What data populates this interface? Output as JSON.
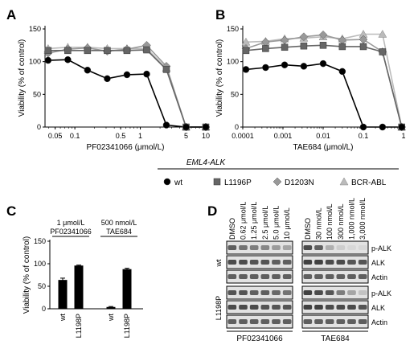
{
  "panels": {
    "A": "A",
    "B": "B",
    "C": "C",
    "D": "D"
  },
  "legend": {
    "title": "EML4-ALK",
    "items": [
      {
        "label": "wt",
        "marker": "circle",
        "color": "#000000"
      },
      {
        "label": "L1196P",
        "marker": "square",
        "color": "#666666"
      },
      {
        "label": "D1203N",
        "marker": "diamond",
        "color": "#999999"
      },
      {
        "label": "BCR-ABL",
        "marker": "triangle",
        "color": "#bbbbbb"
      }
    ]
  },
  "chart_data": [
    {
      "panel": "A",
      "type": "line",
      "xscale": "log",
      "xlim": [
        0.035,
        10
      ],
      "ylim": [
        0,
        150
      ],
      "xlabel": "PF02341066 (μmol/L)",
      "ylabel": "Viability (% of control)",
      "xticks": [
        0.05,
        0.1,
        0.5,
        1,
        5,
        10
      ],
      "xtick_labels": [
        "0.05",
        "0.1",
        "0.5",
        "1",
        "5",
        "10"
      ],
      "yticks": [
        0,
        50,
        100,
        150
      ],
      "x": [
        0.039,
        0.078,
        0.156,
        0.3125,
        0.625,
        1.25,
        2.5,
        5,
        10
      ],
      "series": [
        {
          "name": "wt",
          "color": "#000000",
          "marker": "circle",
          "values": [
            102,
            103,
            87,
            74,
            80,
            81,
            3,
            0,
            0
          ]
        },
        {
          "name": "L1196P",
          "color": "#666666",
          "marker": "square",
          "values": [
            117,
            117,
            117,
            117,
            117,
            118,
            88,
            0,
            0
          ]
        },
        {
          "name": "D1203N",
          "color": "#999999",
          "marker": "diamond",
          "values": [
            113,
            119,
            121,
            116,
            119,
            125,
            93,
            0,
            0
          ]
        },
        {
          "name": "BCR-ABL",
          "color": "#bbbbbb",
          "marker": "triangle",
          "values": [
            120,
            122,
            122,
            120,
            120,
            120,
            90,
            0,
            0
          ]
        }
      ]
    },
    {
      "panel": "B",
      "type": "line",
      "xscale": "log",
      "xlim": [
        0.0001,
        1
      ],
      "ylim": [
        0,
        150
      ],
      "xlabel": "TAE684 (μmol/L)",
      "ylabel": "Viability (% of control)",
      "xticks": [
        0.0001,
        0.001,
        0.01,
        0.1,
        1
      ],
      "xtick_labels": [
        "0.0001",
        "0.001",
        "0.01",
        "0.1",
        "1"
      ],
      "yticks": [
        0,
        50,
        100,
        150
      ],
      "x": [
        0.00012,
        0.00037,
        0.0011,
        0.0033,
        0.01,
        0.03,
        0.1,
        0.3,
        0.9
      ],
      "series": [
        {
          "name": "wt",
          "color": "#000000",
          "marker": "circle",
          "values": [
            88,
            91,
            95,
            93,
            97,
            85,
            0,
            0,
            0
          ]
        },
        {
          "name": "L1196P",
          "color": "#666666",
          "marker": "square",
          "values": [
            117,
            120,
            122,
            124,
            125,
            123,
            123,
            115,
            0
          ]
        },
        {
          "name": "D1203N",
          "color": "#999999",
          "marker": "diamond",
          "values": [
            120,
            130,
            133,
            138,
            141,
            133,
            134,
            115,
            0
          ]
        },
        {
          "name": "BCR-ABL",
          "color": "#bbbbbb",
          "marker": "triangle",
          "values": [
            130,
            131,
            135,
            136,
            138,
            135,
            142,
            142,
            0
          ]
        }
      ]
    },
    {
      "panel": "C",
      "type": "bar",
      "ylim": [
        0,
        150
      ],
      "ylabel": "Viability (% of control)",
      "yticks": [
        0,
        50,
        100,
        150
      ],
      "groups": [
        {
          "label_line1": "1 μmol/L",
          "label_line2": "PF02341066",
          "categories": [
            "wt",
            "L1198P"
          ],
          "values": [
            64,
            96
          ],
          "errors": [
            4,
            1
          ]
        },
        {
          "label_line1": "500 nmol/L",
          "label_line2": "TAE684",
          "categories": [
            "wt",
            "L1198P"
          ],
          "values": [
            4,
            88
          ],
          "errors": [
            1,
            2
          ]
        }
      ]
    }
  ],
  "blot": {
    "pf_lanes": [
      "DMSO",
      "0.62 μmol/L",
      "1.25 μmol/L",
      "2.5 μmol/L",
      "5.0 μmol/L",
      "10 μmol/L"
    ],
    "tae_lanes": [
      "DMSO",
      "30 nmol/L",
      "100 nmol/L",
      "300 nmol/L",
      "1,000 nmol/L",
      "3,000 nmol/L"
    ],
    "rows": [
      {
        "group": "wt",
        "labels": [
          "p-ALK",
          "ALK",
          "Actin"
        ],
        "pf_intensity": [
          [
            0.7,
            0.6,
            0.55,
            0.5,
            0.4,
            0.35
          ],
          [
            0.8,
            0.8,
            0.75,
            0.75,
            0.7,
            0.7
          ],
          [
            0.7,
            0.7,
            0.7,
            0.7,
            0.7,
            0.7
          ]
        ],
        "tae_intensity": [
          [
            0.8,
            0.7,
            0.3,
            0.15,
            0.1,
            0.1
          ],
          [
            0.85,
            0.85,
            0.8,
            0.8,
            0.75,
            0.75
          ],
          [
            0.7,
            0.7,
            0.7,
            0.7,
            0.7,
            0.7
          ]
        ]
      },
      {
        "group": "L1198P",
        "labels": [
          "p-ALK",
          "ALK",
          "Actin"
        ],
        "pf_intensity": [
          [
            0.75,
            0.75,
            0.7,
            0.7,
            0.65,
            0.6
          ],
          [
            0.8,
            0.8,
            0.8,
            0.75,
            0.75,
            0.75
          ],
          [
            0.7,
            0.7,
            0.7,
            0.7,
            0.7,
            0.7
          ]
        ],
        "tae_intensity": [
          [
            0.85,
            0.8,
            0.75,
            0.55,
            0.35,
            0.2
          ],
          [
            0.85,
            0.85,
            0.8,
            0.8,
            0.8,
            0.75
          ],
          [
            0.7,
            0.7,
            0.7,
            0.7,
            0.7,
            0.7
          ]
        ]
      }
    ],
    "drug_labels": [
      "PF02341066",
      "TAE684"
    ]
  }
}
